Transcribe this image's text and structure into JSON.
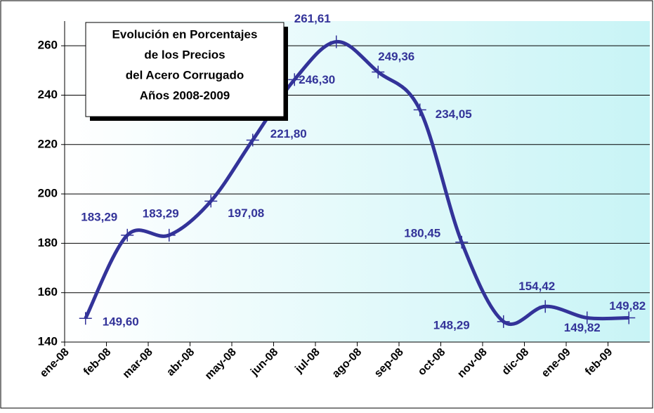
{
  "chart_data": {
    "type": "line",
    "title": [
      "Evolución en Porcentajes",
      "de los Precios",
      "del Acero Corrugado",
      "Años 2008-2009"
    ],
    "categories": [
      "ene-08",
      "feb-08",
      "mar-08",
      "abr-08",
      "may-08",
      "jun-08",
      "jul-08",
      "ago-08",
      "sep-08",
      "oct-08",
      "nov-08",
      "dic-08",
      "ene-09",
      "feb-09"
    ],
    "series": [
      {
        "color": "#333399",
        "values": [
          149.6,
          183.29,
          183.29,
          197.08,
          221.8,
          246.3,
          261.61,
          249.36,
          234.05,
          180.45,
          148.29,
          154.42,
          149.82,
          149.82
        ],
        "value_labels": [
          "149,60",
          "183,29",
          "183,29",
          "197,08",
          "221,80",
          "246,30",
          "261,61",
          "249,36",
          "234,05",
          "180,45",
          "148,29",
          "154,42",
          "149,82",
          "149,82"
        ]
      }
    ],
    "ylim": [
      140,
      270
    ],
    "yticks": [
      140,
      160,
      180,
      200,
      220,
      240,
      260
    ],
    "grid": true
  }
}
